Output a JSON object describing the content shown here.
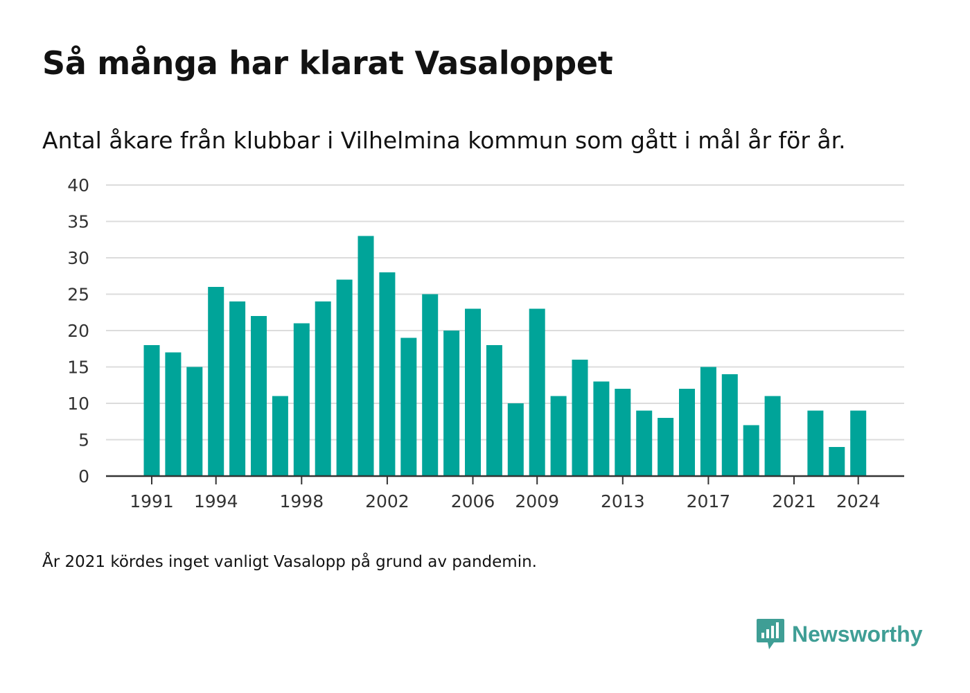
{
  "title": "Så många har klarat Vasaloppet",
  "subtitle": "Antal åkare från klubbar i Vilhelmina kommun som gått i mål år för år.",
  "note": "År 2021 kördes inget vanligt Vasalopp på grund av pandemin.",
  "brand": {
    "name": "Newsworthy",
    "icon": "newsworthy-logo-icon",
    "color": "#3f9e95"
  },
  "chart_data": {
    "type": "bar",
    "bar_color": "#00a499",
    "grid": true,
    "ylim": [
      0,
      40
    ],
    "yticks": [
      0,
      5,
      10,
      15,
      20,
      25,
      30,
      35,
      40
    ],
    "xticks": [
      "1991",
      "1994",
      "1998",
      "2002",
      "2006",
      "2009",
      "2013",
      "2017",
      "2021",
      "2024"
    ],
    "categories": [
      "1991",
      "1992",
      "1993",
      "1994",
      "1995",
      "1996",
      "1997",
      "1998",
      "1999",
      "2000",
      "2001",
      "2002",
      "2003",
      "2004",
      "2005",
      "2006",
      "2007",
      "2008",
      "2009",
      "2010",
      "2011",
      "2012",
      "2013",
      "2014",
      "2015",
      "2016",
      "2017",
      "2018",
      "2019",
      "2020",
      "2021",
      "2022",
      "2023",
      "2024"
    ],
    "values": [
      18,
      17,
      15,
      26,
      24,
      22,
      11,
      21,
      24,
      27,
      33,
      28,
      19,
      25,
      20,
      23,
      18,
      10,
      23,
      11,
      16,
      13,
      12,
      9,
      8,
      12,
      15,
      14,
      7,
      11,
      0,
      9,
      4,
      9
    ]
  }
}
